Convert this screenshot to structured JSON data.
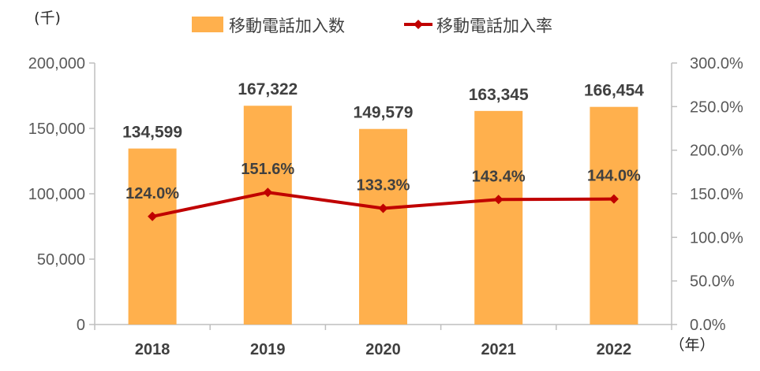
{
  "chart_data": {
    "type": "bar",
    "categories": [
      "2018",
      "2019",
      "2020",
      "2021",
      "2022"
    ],
    "series": [
      {
        "name": "移動電話加入数",
        "type": "bar",
        "axis": "left",
        "values": [
          134599,
          167322,
          149579,
          163345,
          166454
        ],
        "labels": [
          "134,599",
          "167,322",
          "149,579",
          "163,345",
          "166,454"
        ],
        "color": "#FFB04D"
      },
      {
        "name": "移動電話加入率",
        "type": "line",
        "axis": "right",
        "values": [
          124.0,
          151.6,
          133.3,
          143.4,
          144.0
        ],
        "labels": [
          "124.0%",
          "151.6%",
          "133.3%",
          "143.4%",
          "144.0%"
        ],
        "color": "#C00000"
      }
    ],
    "y_left": {
      "unit_label": "(千)",
      "ylim": [
        0,
        200000
      ],
      "ticks": [
        0,
        50000,
        100000,
        150000,
        200000
      ],
      "tick_labels": [
        "0",
        "50,000",
        "100,000",
        "150,000",
        "200,000"
      ]
    },
    "y_right": {
      "ylim": [
        0,
        300
      ],
      "ticks": [
        0,
        50,
        100,
        150,
        200,
        250,
        300
      ],
      "tick_labels": [
        "0.0%",
        "50.0%",
        "100.0%",
        "150.0%",
        "200.0%",
        "250.0%",
        "300.0%"
      ]
    },
    "x_unit_label": "（年）",
    "legend_position": "top",
    "grid": false
  }
}
